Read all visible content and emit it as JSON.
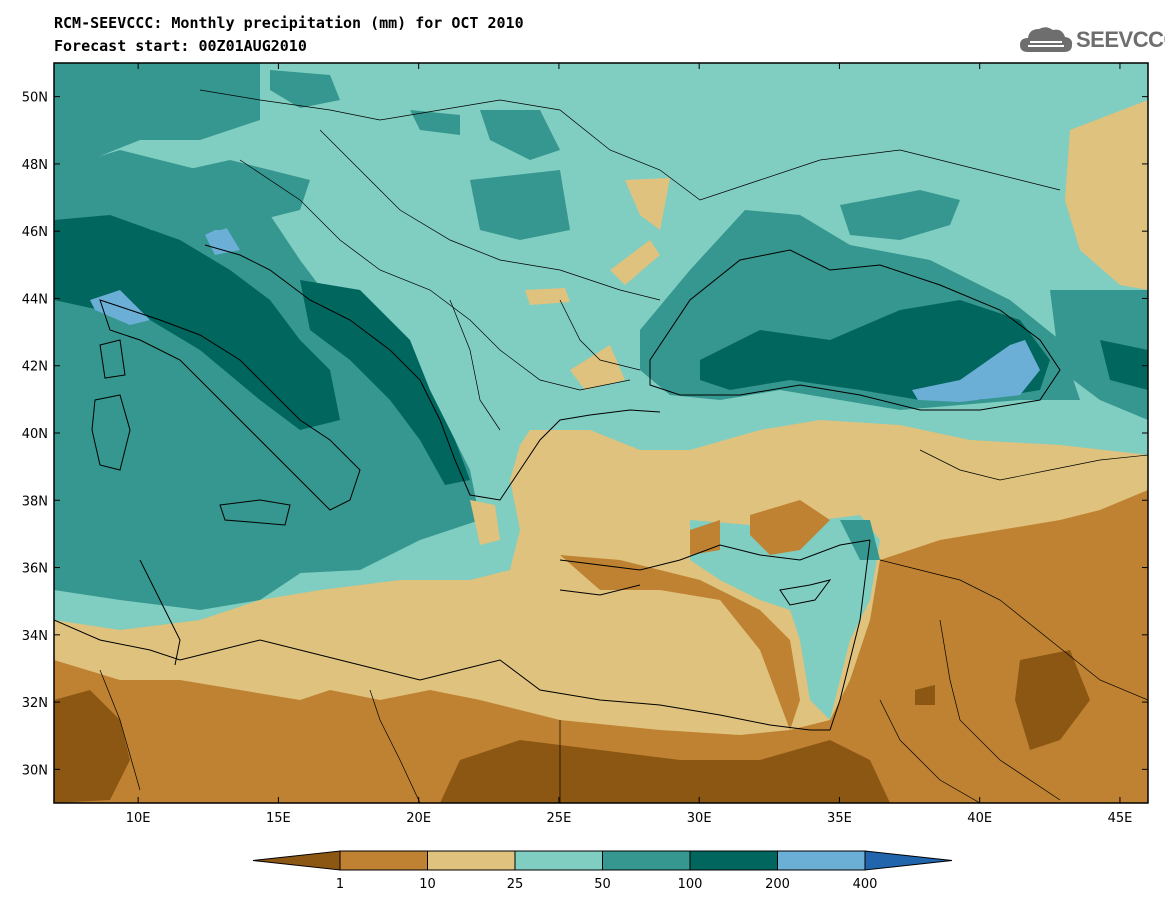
{
  "title": {
    "line1": "RCM-SEEVCCC: Monthly precipitation (mm) for OCT 2010",
    "line2": "Forecast start: 00Z01AUG2010"
  },
  "logo": {
    "text": "SEEVCCC",
    "icon": "cloud-logo-icon"
  },
  "map": {
    "lon_range": [
      7,
      46
    ],
    "lat_range": [
      29,
      51
    ],
    "lat_ticks": [
      "50N",
      "48N",
      "46N",
      "44N",
      "42N",
      "40N",
      "38N",
      "36N",
      "34N",
      "32N",
      "30N"
    ],
    "lon_ticks": [
      "10E",
      "15E",
      "20E",
      "25E",
      "30E",
      "35E",
      "40E",
      "45E"
    ]
  },
  "colorbar": {
    "levels": [
      "1",
      "10",
      "25",
      "50",
      "100",
      "200",
      "400"
    ],
    "colors": [
      "#8c5713",
      "#bf8232",
      "#dfc27d",
      "#80cdc1",
      "#35978f",
      "#01665e",
      "#6baed6",
      "#2166ac"
    ]
  }
}
